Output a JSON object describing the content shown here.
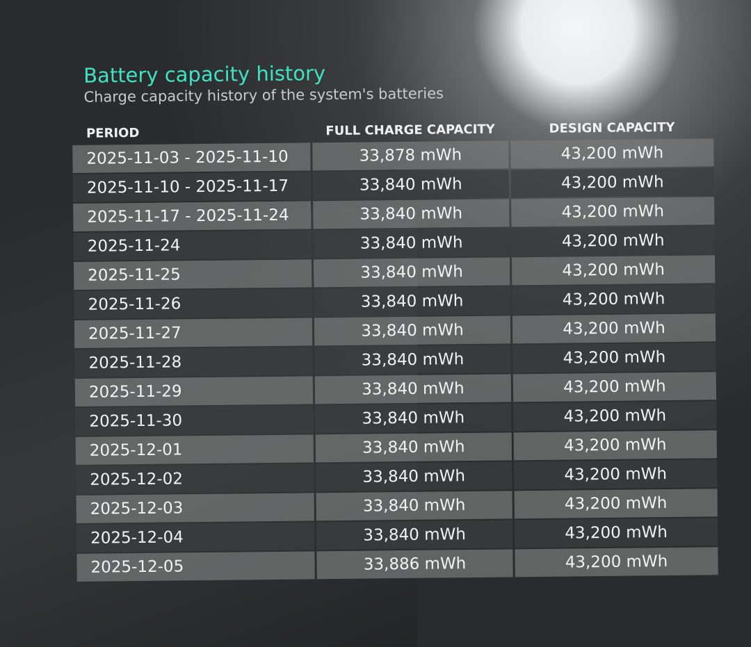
{
  "header": {
    "title": "Battery capacity history",
    "subtitle": "Charge capacity history of the system's batteries"
  },
  "table": {
    "columns": [
      "PERIOD",
      "FULL CHARGE CAPACITY",
      "DESIGN CAPACITY"
    ],
    "rows": [
      [
        "2025-11-03 - 2025-11-10",
        "33,878 mWh",
        "43,200 mWh"
      ],
      [
        "2025-11-10 - 2025-11-17",
        "33,840 mWh",
        "43,200 mWh"
      ],
      [
        "2025-11-17 - 2025-11-24",
        "33,840 mWh",
        "43,200 mWh"
      ],
      [
        "2025-11-24",
        "33,840 mWh",
        "43,200 mWh"
      ],
      [
        "2025-11-25",
        "33,840 mWh",
        "43,200 mWh"
      ],
      [
        "2025-11-26",
        "33,840 mWh",
        "43,200 mWh"
      ],
      [
        "2025-11-27",
        "33,840 mWh",
        "43,200 mWh"
      ],
      [
        "2025-11-28",
        "33,840 mWh",
        "43,200 mWh"
      ],
      [
        "2025-11-29",
        "33,840 mWh",
        "43,200 mWh"
      ],
      [
        "2025-11-30",
        "33,840 mWh",
        "43,200 mWh"
      ],
      [
        "2025-12-01",
        "33,840 mWh",
        "43,200 mWh"
      ],
      [
        "2025-12-02",
        "33,840 mWh",
        "43,200 mWh"
      ],
      [
        "2025-12-03",
        "33,840 mWh",
        "43,200 mWh"
      ],
      [
        "2025-12-04",
        "33,840 mWh",
        "43,200 mWh"
      ],
      [
        "2025-12-05",
        "33,886 mWh",
        "43,200 mWh"
      ]
    ]
  },
  "colors": {
    "title": "#3fe3c4",
    "background": "#2a2b2c"
  }
}
